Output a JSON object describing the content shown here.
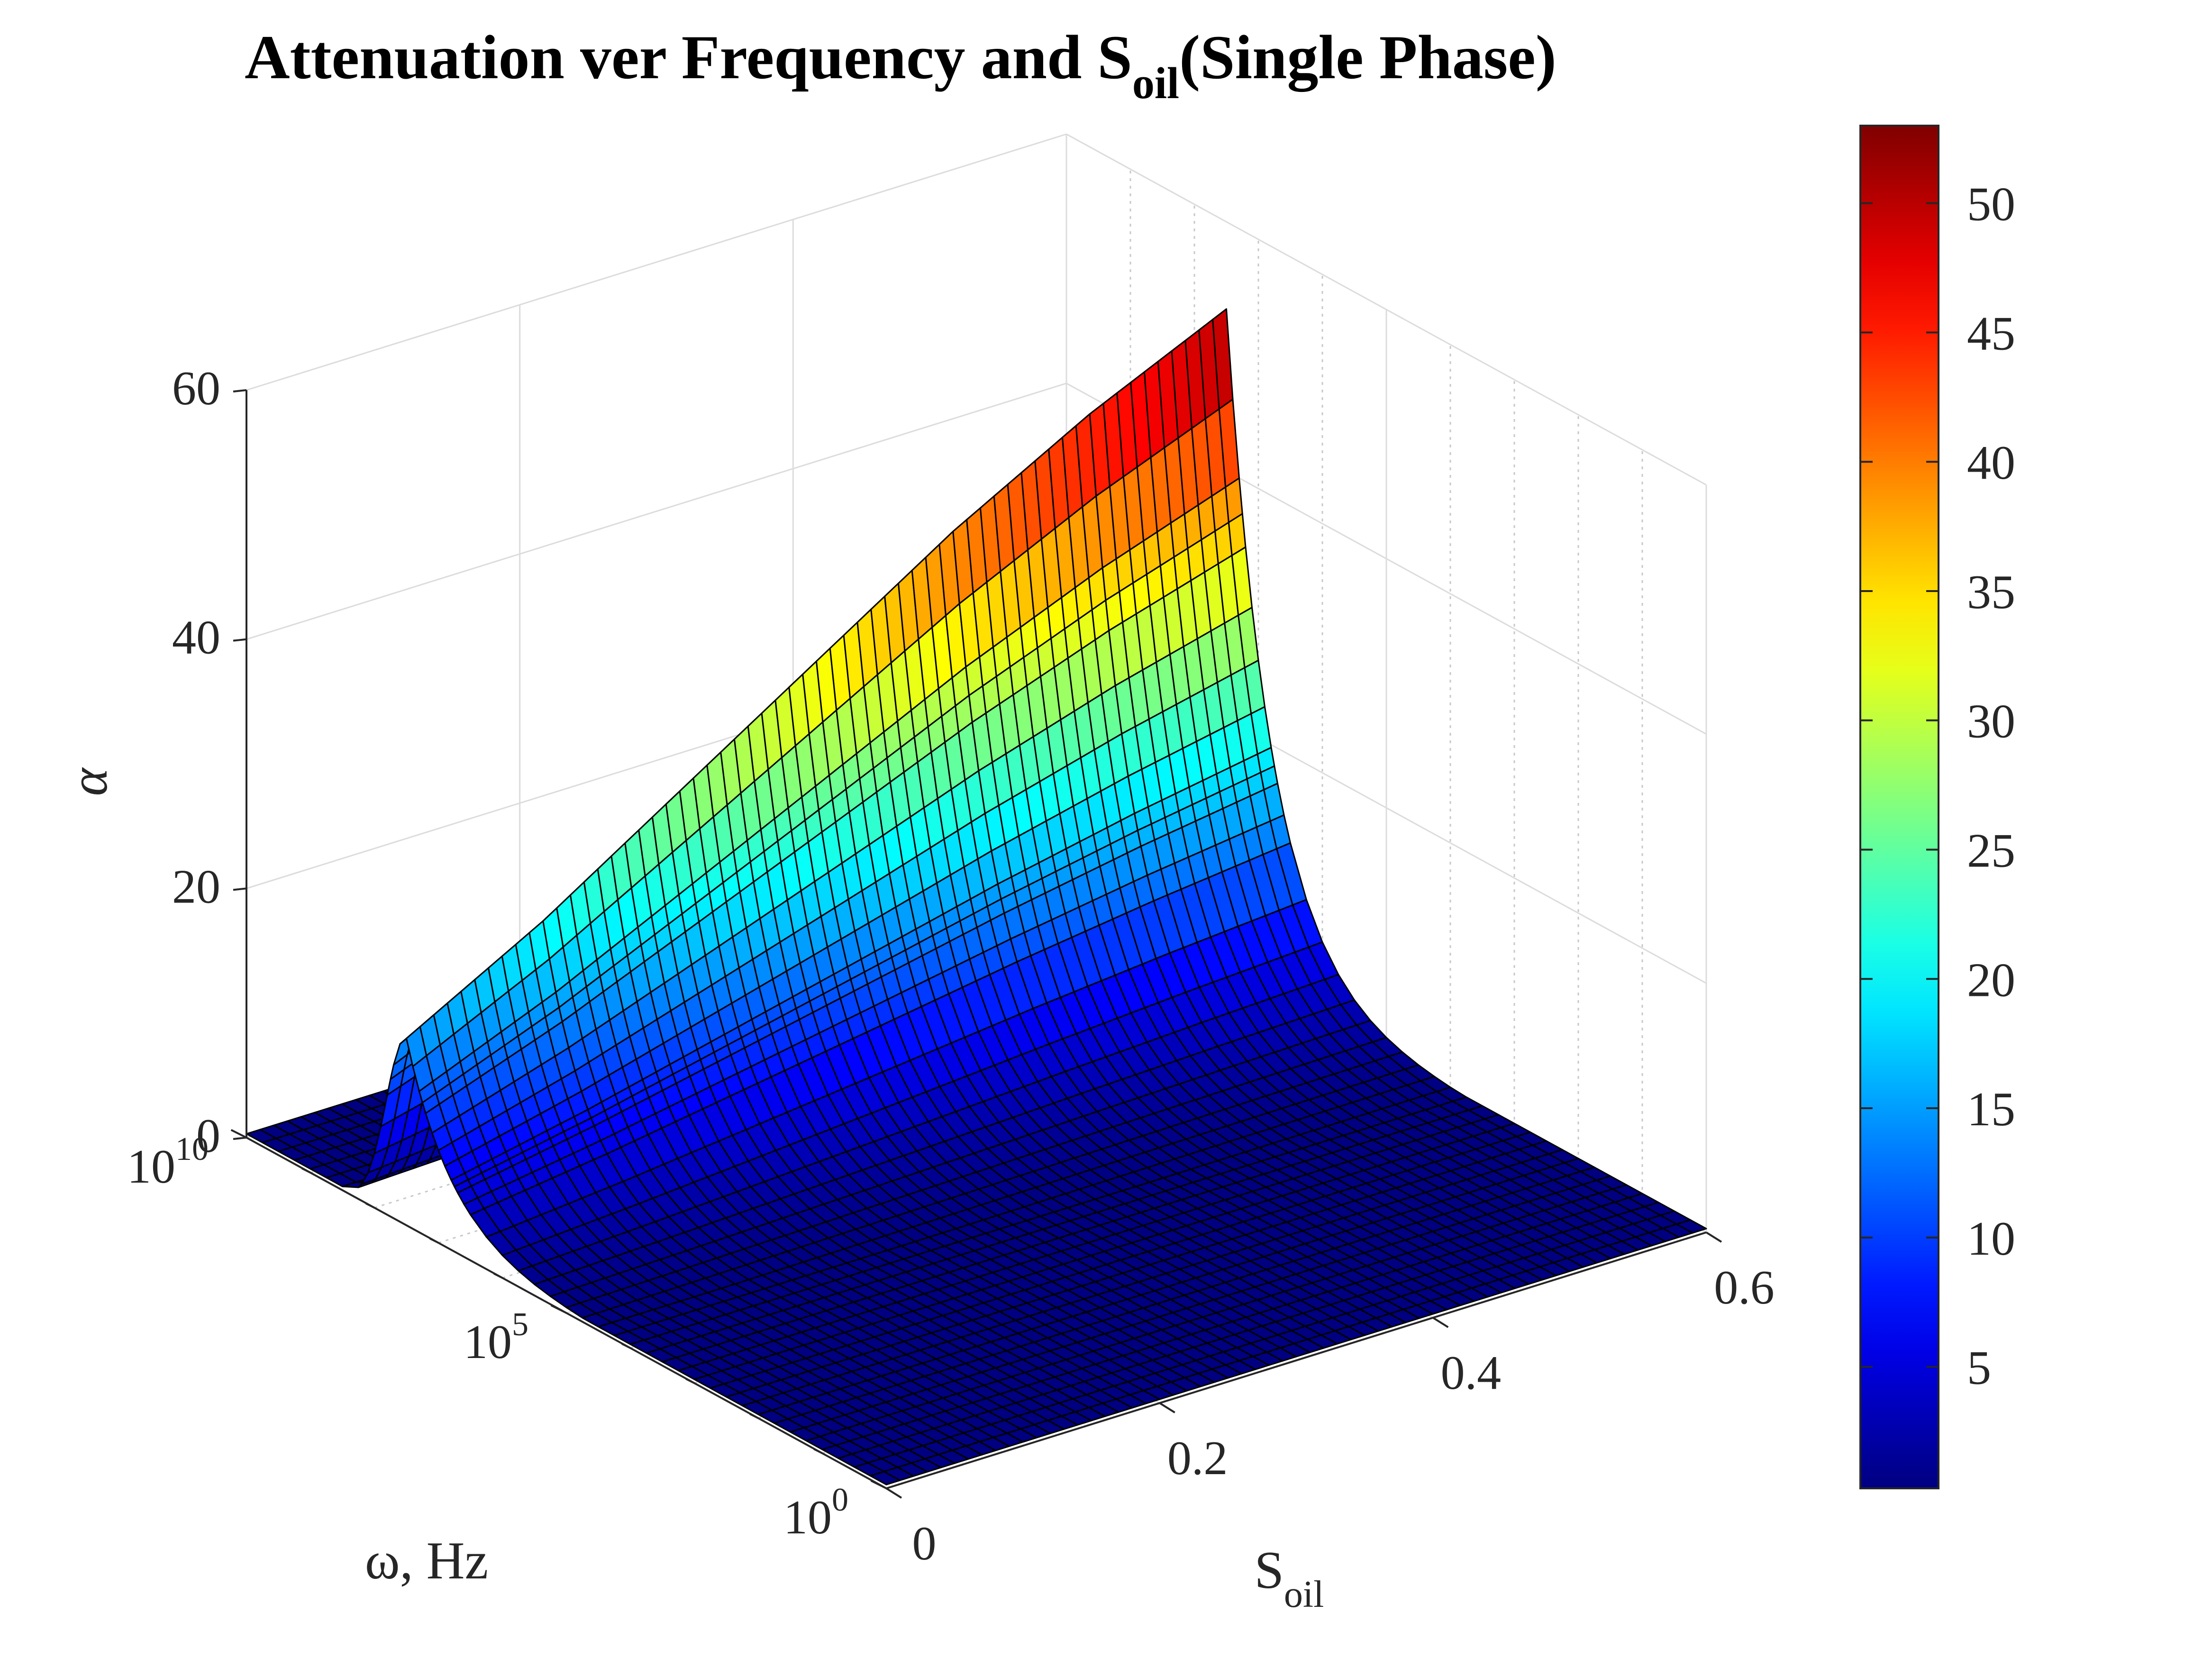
{
  "chart_data": {
    "type": "surface",
    "colormap": "jet",
    "title": "Attenuation ver Frequency and S",
    "title_subscript": "oil",
    "title_suffix": "(Single Phase)",
    "xlabel": "S",
    "xlabel_subscript": "oil",
    "ylabel": "ω, Hz",
    "zlabel": "α",
    "xlim": [
      0,
      0.6
    ],
    "y_scale": "log",
    "ylim": [
      1,
      10000000000
    ],
    "zlim": [
      0,
      60
    ],
    "x_ticks": [
      "0",
      "0.2",
      "0.4",
      "0.6"
    ],
    "y_ticks": [
      {
        "base": "10",
        "exp": "0"
      },
      {
        "base": "10",
        "exp": "5"
      },
      {
        "base": "10",
        "exp": "10"
      }
    ],
    "z_ticks": [
      "0",
      "20",
      "40",
      "60"
    ],
    "colorbar_ticks": [
      "5",
      "10",
      "15",
      "20",
      "25",
      "30",
      "35",
      "40",
      "45",
      "50"
    ],
    "colorbar_range": [
      0.3,
      53
    ],
    "grid": true,
    "peak": {
      "frequency_exponent": 7.5,
      "alpha_at_min_s_oil": 15,
      "alpha_at_max_s_oil": 53
    },
    "s_oil_values": [
      0,
      0.05,
      0.1,
      0.15,
      0.2,
      0.25,
      0.3,
      0.35,
      0.4,
      0.45,
      0.5,
      0.55,
      0.6
    ],
    "peak_alpha_values": [
      15,
      18,
      21,
      24.5,
      28,
      31.5,
      35,
      38.5,
      42,
      45,
      48,
      50.5,
      53
    ]
  }
}
